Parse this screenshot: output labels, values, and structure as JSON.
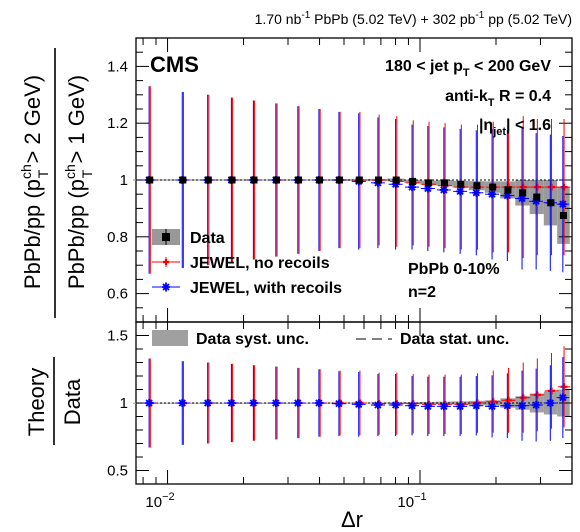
{
  "header": {
    "lumi_left": "1.70 nb",
    "lumi_left_sup": "-1",
    "lumi_left_tail": " PbPb (5.02 TeV) + 302 pb",
    "lumi_right_sup": "-1",
    "lumi_right_tail": " pp (5.02 TeV)"
  },
  "labels": {
    "cms": "CMS",
    "jet_pt_a": "180 < jet p",
    "jet_pt_sub": "T",
    "jet_pt_b": " < 200 GeV",
    "antikt_a": "anti-k",
    "antikt_sub": "T",
    "antikt_b": " R = 0.4",
    "eta_a": "|η",
    "eta_sub": "jet",
    "eta_b": "| < 1.6",
    "centrality": "PbPb 0-10%",
    "n": "n=2"
  },
  "axes": {
    "ylabel_top_line1_a": "PbPb/pp (p",
    "ylabel_top_line1_sup": "ch",
    "ylabel_top_line1_sub": "T",
    "ylabel_top_line1_b": " > 2 GeV)",
    "ylabel_top_line2_a": "PbPb/pp (p",
    "ylabel_top_line2_sup": "ch",
    "ylabel_top_line2_sub": "T",
    "ylabel_top_line2_b": " > 1 GeV)",
    "ylabel_bottom_num": "Theory",
    "ylabel_bottom_den": "Data",
    "xlabel": "Δr",
    "xtick_labels": [
      {
        "base": "10",
        "exp": "−2",
        "value": 0.01
      },
      {
        "base": "10",
        "exp": "−1",
        "value": 0.1
      }
    ]
  },
  "legend_top": [
    {
      "label": "Data",
      "color": "#000000"
    },
    {
      "label": "JEWEL, no recoils",
      "color": "#ff0000"
    },
    {
      "label": "JEWEL, with recoils",
      "color": "#0000ff"
    }
  ],
  "legend_bottom": [
    {
      "label": "Data syst. unc."
    },
    {
      "label": "Data stat. unc."
    }
  ],
  "chart_data": [
    {
      "type": "scatter",
      "panel": "top",
      "xscale": "log",
      "xlim": [
        0.0075,
        0.4
      ],
      "ylim": [
        0.5,
        1.5
      ],
      "yticks": [
        0.6,
        0.8,
        1.0,
        1.2,
        1.4
      ],
      "x": [
        0.0085,
        0.0115,
        0.0145,
        0.018,
        0.022,
        0.027,
        0.033,
        0.04,
        0.048,
        0.0575,
        0.0685,
        0.0805,
        0.0935,
        0.108,
        0.125,
        0.145,
        0.168,
        0.194,
        0.223,
        0.255,
        0.29,
        0.33,
        0.37
      ],
      "series": [
        {
          "name": "Data",
          "color": "#000000",
          "values": [
            1.0,
            1.0,
            1.0,
            1.0,
            1.0,
            1.0,
            1.0,
            1.0,
            1.0,
            1.0,
            1.0,
            1.0,
            0.995,
            0.99,
            0.99,
            0.985,
            0.98,
            0.975,
            0.965,
            0.955,
            0.94,
            0.92,
            0.875
          ],
          "syst": [
            0.002,
            0.002,
            0.002,
            0.002,
            0.002,
            0.002,
            0.002,
            0.002,
            0.003,
            0.003,
            0.004,
            0.005,
            0.006,
            0.008,
            0.01,
            0.012,
            0.016,
            0.02,
            0.03,
            0.045,
            0.06,
            0.08,
            0.1
          ]
        },
        {
          "name": "JEWEL, no recoils",
          "color": "#ff0000",
          "values": [
            1.0,
            1.0,
            1.0,
            1.0,
            1.0,
            1.0,
            1.0,
            1.0,
            1.0,
            1.0,
            1.0,
            0.995,
            0.99,
            0.985,
            0.98,
            0.975,
            0.975,
            0.975,
            0.975,
            0.975,
            0.975,
            0.975,
            0.975
          ],
          "err": [
            0.33,
            0.31,
            0.3,
            0.29,
            0.28,
            0.27,
            0.26,
            0.25,
            0.24,
            0.24,
            0.23,
            0.23,
            0.22,
            0.22,
            0.22,
            0.22,
            0.22,
            0.23,
            0.23,
            0.25,
            0.24,
            0.24,
            0.24
          ]
        },
        {
          "name": "JEWEL, with recoils",
          "color": "#0000ff",
          "values": [
            1.0,
            1.0,
            1.0,
            1.0,
            1.0,
            1.0,
            1.0,
            1.0,
            1.0,
            0.995,
            0.99,
            0.985,
            0.975,
            0.97,
            0.965,
            0.96,
            0.955,
            0.95,
            0.945,
            0.935,
            0.925,
            0.92,
            0.915
          ],
          "err": [
            0.33,
            0.31,
            0.3,
            0.29,
            0.28,
            0.27,
            0.26,
            0.25,
            0.24,
            0.24,
            0.23,
            0.23,
            0.22,
            0.22,
            0.22,
            0.22,
            0.22,
            0.23,
            0.23,
            0.25,
            0.24,
            0.24,
            0.24
          ]
        }
      ]
    },
    {
      "type": "scatter",
      "panel": "bottom",
      "xscale": "log",
      "xlim": [
        0.0075,
        0.4
      ],
      "ylim": [
        0.4,
        1.6
      ],
      "yticks": [
        0.5,
        1.0,
        1.5
      ],
      "x": [
        0.0085,
        0.0115,
        0.0145,
        0.018,
        0.022,
        0.027,
        0.033,
        0.04,
        0.048,
        0.0575,
        0.0685,
        0.0805,
        0.0935,
        0.108,
        0.125,
        0.145,
        0.168,
        0.194,
        0.223,
        0.255,
        0.29,
        0.33,
        0.37
      ],
      "data_syst": [
        0.002,
        0.002,
        0.002,
        0.002,
        0.002,
        0.002,
        0.002,
        0.002,
        0.003,
        0.003,
        0.004,
        0.005,
        0.006,
        0.008,
        0.01,
        0.012,
        0.016,
        0.02,
        0.035,
        0.05,
        0.07,
        0.085,
        0.1
      ],
      "series": [
        {
          "name": "JEWEL, no recoils",
          "color": "#ff0000",
          "values": [
            1.0,
            1.0,
            1.0,
            1.0,
            1.0,
            1.0,
            1.0,
            1.0,
            1.0,
            1.0,
            0.995,
            0.995,
            0.995,
            0.99,
            0.99,
            0.99,
            1.0,
            1.01,
            1.02,
            1.04,
            1.06,
            1.09,
            1.12
          ],
          "err": [
            0.33,
            0.31,
            0.3,
            0.29,
            0.28,
            0.27,
            0.26,
            0.25,
            0.24,
            0.24,
            0.23,
            0.23,
            0.22,
            0.22,
            0.22,
            0.22,
            0.22,
            0.23,
            0.24,
            0.26,
            0.27,
            0.28,
            0.3
          ]
        },
        {
          "name": "JEWEL, with recoils",
          "color": "#0000ff",
          "values": [
            1.0,
            1.0,
            1.0,
            1.0,
            1.0,
            1.0,
            1.0,
            1.0,
            0.995,
            0.99,
            0.985,
            0.985,
            0.98,
            0.975,
            0.975,
            0.975,
            0.98,
            0.975,
            0.98,
            0.98,
            0.985,
            1.0,
            1.04
          ],
          "err": [
            0.33,
            0.31,
            0.3,
            0.29,
            0.28,
            0.27,
            0.26,
            0.25,
            0.24,
            0.24,
            0.23,
            0.23,
            0.22,
            0.22,
            0.22,
            0.22,
            0.22,
            0.23,
            0.24,
            0.26,
            0.27,
            0.28,
            0.3
          ]
        }
      ]
    }
  ]
}
